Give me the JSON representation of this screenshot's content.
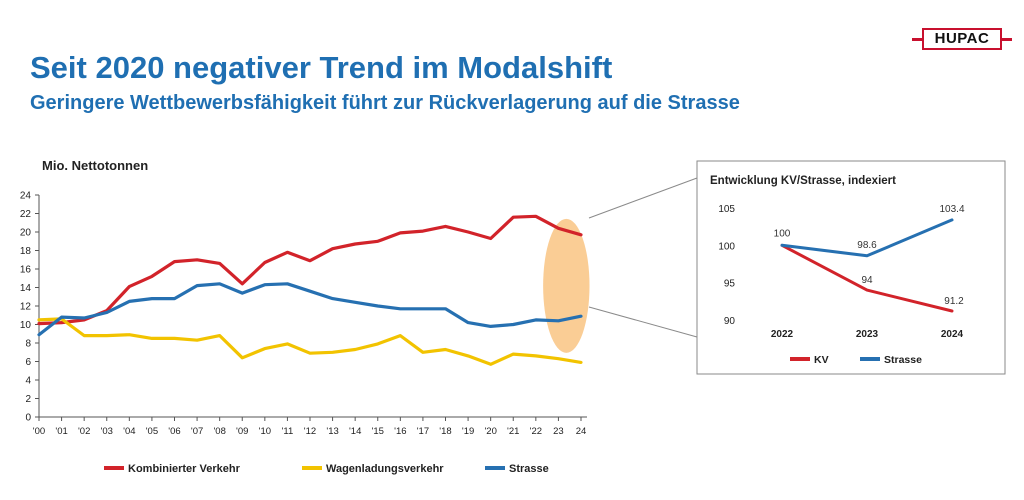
{
  "header": {
    "title": "Seit 2020 negativer Trend im Modalshift",
    "subtitle": "Geringere Wettbewerbsfähigkeit führt zur Rückverlagerung auf die Strasse",
    "logo_text": "HUPAC"
  },
  "chart_data": [
    {
      "type": "line",
      "title": "",
      "ylabel": "Mio. Nettotonnen",
      "xlabel": "",
      "ylim": [
        0,
        24
      ],
      "yticks": [
        0,
        2,
        4,
        6,
        8,
        10,
        12,
        14,
        16,
        18,
        20,
        22,
        24
      ],
      "categories": [
        "'00",
        "'01",
        "'02",
        "'03",
        "'04",
        "'05",
        "'06",
        "'07",
        "'08",
        "'09",
        "'10",
        "'11",
        "'12",
        "'13",
        "'14",
        "'15",
        "'16",
        "'17",
        "'18",
        "'19",
        "'20",
        "'21",
        "'22",
        "23",
        "24"
      ],
      "grid": false,
      "legend_position": "bottom",
      "highlight": {
        "from_index": 22.5,
        "to_index": 24.2,
        "color": "#f9c88a"
      },
      "series": [
        {
          "name": "Kombinierter Verkehr",
          "color": "#d2232a",
          "values": [
            10.1,
            10.2,
            10.5,
            11.5,
            14.1,
            15.2,
            16.8,
            17.0,
            16.6,
            14.4,
            16.7,
            17.8,
            16.9,
            18.2,
            18.7,
            19.0,
            19.9,
            20.1,
            20.6,
            20.0,
            19.3,
            21.6,
            21.7,
            20.4,
            19.7
          ]
        },
        {
          "name": "Wagenladungsverkehr",
          "color": "#f2c300",
          "values": [
            10.5,
            10.6,
            8.8,
            8.8,
            8.9,
            8.5,
            8.5,
            8.3,
            8.8,
            6.4,
            7.4,
            7.9,
            6.9,
            7.0,
            7.3,
            7.9,
            8.8,
            7.0,
            7.3,
            6.6,
            5.7,
            6.8,
            6.6,
            6.3,
            5.9
          ]
        },
        {
          "name": "Strasse",
          "color": "#2670b1",
          "values": [
            8.9,
            10.8,
            10.7,
            11.3,
            12.5,
            12.8,
            12.8,
            14.2,
            14.4,
            13.4,
            14.3,
            14.4,
            13.6,
            12.8,
            12.4,
            12.0,
            11.7,
            11.7,
            11.7,
            10.2,
            9.8,
            10.0,
            10.5,
            10.4,
            10.9
          ]
        }
      ]
    },
    {
      "type": "line",
      "title": "Entwicklung KV/Strasse, indexiert",
      "xlabel": "",
      "ylabel": "",
      "ylim": [
        90,
        105
      ],
      "yticks": [
        90,
        95,
        100,
        105
      ],
      "categories": [
        "2022",
        "2023",
        "2024"
      ],
      "grid": false,
      "legend_position": "bottom",
      "series": [
        {
          "name": "KV",
          "color": "#d2232a",
          "values": [
            100,
            94,
            91.2
          ],
          "labels": [
            "",
            "94",
            "91.2"
          ]
        },
        {
          "name": "Strasse",
          "color": "#2670b1",
          "values": [
            100,
            98.6,
            103.4
          ],
          "labels": [
            "100",
            "98.6",
            "103.4"
          ]
        }
      ]
    }
  ]
}
